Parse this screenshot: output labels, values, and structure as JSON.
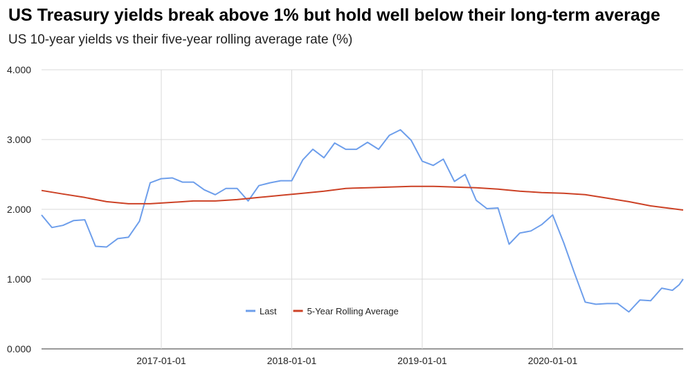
{
  "chart_data": {
    "type": "line",
    "title": "US Treasury yields break above 1% but hold well below their long-term average",
    "subtitle": "US 10-year yields vs their five-year rolling average rate (%)",
    "xlabel": "",
    "ylabel": "",
    "x_range": [
      "2016-02-01",
      "2020-12-31"
    ],
    "ylim": [
      0,
      4
    ],
    "y_ticks": [
      "0.000",
      "1.000",
      "2.000",
      "3.000",
      "4.000"
    ],
    "x_ticks": [
      "2017-01-01",
      "2018-01-01",
      "2019-01-01",
      "2020-01-01"
    ],
    "grid": true,
    "legend_position": "bottom-center",
    "colors": {
      "Last": "#6d9eeb",
      "5-Year Rolling Average": "#cc4125",
      "grid": "#d9d9d9"
    },
    "series": [
      {
        "name": "Last",
        "points": [
          [
            "2016-02-01",
            1.92
          ],
          [
            "2016-03-01",
            1.74
          ],
          [
            "2016-04-01",
            1.77
          ],
          [
            "2016-05-01",
            1.84
          ],
          [
            "2016-06-01",
            1.85
          ],
          [
            "2016-07-01",
            1.47
          ],
          [
            "2016-08-01",
            1.46
          ],
          [
            "2016-09-01",
            1.58
          ],
          [
            "2016-10-01",
            1.6
          ],
          [
            "2016-11-01",
            1.83
          ],
          [
            "2016-12-01",
            2.38
          ],
          [
            "2017-01-01",
            2.44
          ],
          [
            "2017-02-01",
            2.45
          ],
          [
            "2017-03-01",
            2.39
          ],
          [
            "2017-04-01",
            2.39
          ],
          [
            "2017-05-01",
            2.28
          ],
          [
            "2017-06-01",
            2.21
          ],
          [
            "2017-07-01",
            2.3
          ],
          [
            "2017-08-01",
            2.3
          ],
          [
            "2017-09-01",
            2.12
          ],
          [
            "2017-10-01",
            2.34
          ],
          [
            "2017-11-01",
            2.38
          ],
          [
            "2017-12-01",
            2.41
          ],
          [
            "2018-01-01",
            2.41
          ],
          [
            "2018-02-01",
            2.71
          ],
          [
            "2018-03-01",
            2.86
          ],
          [
            "2018-04-01",
            2.74
          ],
          [
            "2018-05-01",
            2.95
          ],
          [
            "2018-06-01",
            2.86
          ],
          [
            "2018-07-01",
            2.86
          ],
          [
            "2018-08-01",
            2.96
          ],
          [
            "2018-09-01",
            2.86
          ],
          [
            "2018-10-01",
            3.06
          ],
          [
            "2018-11-01",
            3.14
          ],
          [
            "2018-12-01",
            2.99
          ],
          [
            "2019-01-01",
            2.69
          ],
          [
            "2019-02-01",
            2.63
          ],
          [
            "2019-03-01",
            2.72
          ],
          [
            "2019-04-01",
            2.4
          ],
          [
            "2019-05-01",
            2.5
          ],
          [
            "2019-06-01",
            2.13
          ],
          [
            "2019-07-01",
            2.01
          ],
          [
            "2019-08-01",
            2.02
          ],
          [
            "2019-09-01",
            1.5
          ],
          [
            "2019-10-01",
            1.66
          ],
          [
            "2019-11-01",
            1.69
          ],
          [
            "2019-12-01",
            1.78
          ],
          [
            "2020-01-01",
            1.92
          ],
          [
            "2020-02-01",
            1.52
          ],
          [
            "2020-03-01",
            1.1
          ],
          [
            "2020-04-01",
            0.67
          ],
          [
            "2020-05-01",
            0.64
          ],
          [
            "2020-06-01",
            0.65
          ],
          [
            "2020-07-01",
            0.65
          ],
          [
            "2020-08-01",
            0.53
          ],
          [
            "2020-09-01",
            0.7
          ],
          [
            "2020-10-01",
            0.69
          ],
          [
            "2020-11-01",
            0.87
          ],
          [
            "2020-12-01",
            0.84
          ],
          [
            "2020-12-20",
            0.92
          ],
          [
            "2020-12-31",
            1.0
          ]
        ]
      },
      {
        "name": "5-Year Rolling Average",
        "points": [
          [
            "2016-02-01",
            2.27
          ],
          [
            "2016-04-01",
            2.22
          ],
          [
            "2016-06-01",
            2.17
          ],
          [
            "2016-08-01",
            2.11
          ],
          [
            "2016-10-01",
            2.08
          ],
          [
            "2016-12-01",
            2.08
          ],
          [
            "2017-02-01",
            2.1
          ],
          [
            "2017-04-01",
            2.12
          ],
          [
            "2017-06-01",
            2.12
          ],
          [
            "2017-08-01",
            2.14
          ],
          [
            "2017-10-01",
            2.17
          ],
          [
            "2017-12-01",
            2.2
          ],
          [
            "2018-02-01",
            2.23
          ],
          [
            "2018-04-01",
            2.26
          ],
          [
            "2018-06-01",
            2.3
          ],
          [
            "2018-08-01",
            2.31
          ],
          [
            "2018-10-01",
            2.32
          ],
          [
            "2018-12-01",
            2.33
          ],
          [
            "2019-02-01",
            2.33
          ],
          [
            "2019-04-01",
            2.32
          ],
          [
            "2019-06-01",
            2.31
          ],
          [
            "2019-08-01",
            2.29
          ],
          [
            "2019-10-01",
            2.26
          ],
          [
            "2019-12-01",
            2.24
          ],
          [
            "2020-02-01",
            2.23
          ],
          [
            "2020-04-01",
            2.21
          ],
          [
            "2020-06-01",
            2.16
          ],
          [
            "2020-08-01",
            2.11
          ],
          [
            "2020-10-01",
            2.05
          ],
          [
            "2020-12-31",
            1.99
          ]
        ]
      }
    ]
  }
}
